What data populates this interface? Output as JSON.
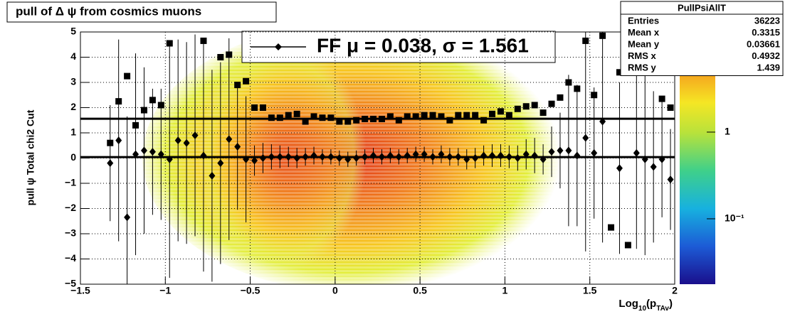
{
  "chart_data": {
    "type": "scatter",
    "title": "pull of Δ ψ from cosmics muons",
    "y_label": "pull ψ   Total chi2 Cut",
    "x_label": [
      "Log",
      "10",
      "(p",
      "TAv",
      ")"
    ],
    "legend_text": "FF μ =  0.038, σ =   1.561",
    "fit_mean": 0.038,
    "fit_sigma": 1.561,
    "xlim": [
      -1.5,
      2
    ],
    "ylim": [
      -5,
      5
    ],
    "xticks": [
      {
        "value": -1.5,
        "label": "−1.5"
      },
      {
        "value": -1,
        "label": "−1"
      },
      {
        "value": -0.5,
        "label": "−0.5"
      },
      0,
      0.5,
      1,
      1.5,
      2
    ],
    "yticks": [
      {
        "value": -5,
        "label": "−5"
      },
      {
        "value": -4,
        "label": "−4"
      },
      {
        "value": -3,
        "label": "−3"
      },
      {
        "value": -2,
        "label": "−2"
      },
      {
        "value": -1,
        "label": "−1"
      },
      0,
      1,
      2,
      3,
      4,
      5
    ],
    "grid": true,
    "zlim": [
      0.0176,
      14.3
    ],
    "zlog": true,
    "zticks": [
      {
        "value": 1,
        "label": "1"
      },
      {
        "value": 0.1,
        "label": "10⁻¹"
      }
    ],
    "x": [
      -1.325,
      -1.275,
      -1.225,
      -1.175,
      -1.125,
      -1.075,
      -1.025,
      -0.975,
      -0.925,
      -0.875,
      -0.825,
      -0.775,
      -0.725,
      -0.675,
      -0.625,
      -0.575,
      -0.525,
      -0.475,
      -0.425,
      -0.375,
      -0.325,
      -0.275,
      -0.225,
      -0.175,
      -0.125,
      -0.075,
      -0.025,
      0.025,
      0.075,
      0.125,
      0.175,
      0.225,
      0.275,
      0.325,
      0.375,
      0.425,
      0.475,
      0.525,
      0.575,
      0.625,
      0.675,
      0.725,
      0.775,
      0.825,
      0.875,
      0.925,
      0.975,
      1.025,
      1.075,
      1.125,
      1.175,
      1.225,
      1.275,
      1.325,
      1.375,
      1.425,
      1.475,
      1.525,
      1.575,
      1.625,
      1.675,
      1.725,
      1.775,
      1.825,
      1.875,
      1.925,
      1.975
    ],
    "series": [
      {
        "marker": "square",
        "color": "#000000",
        "values": [
          0.6,
          2.25,
          3.25,
          1.3,
          1.9,
          2.3,
          2.1,
          4.55,
          null,
          null,
          null,
          4.65,
          null,
          4.0,
          4.1,
          2.9,
          3.05,
          2.0,
          2.0,
          1.6,
          1.6,
          1.7,
          1.75,
          1.45,
          1.65,
          1.6,
          1.6,
          1.45,
          1.45,
          1.5,
          1.55,
          1.55,
          1.55,
          1.65,
          1.5,
          1.65,
          1.65,
          1.7,
          1.7,
          1.65,
          1.5,
          1.7,
          1.7,
          1.7,
          1.5,
          1.75,
          1.85,
          1.7,
          1.95,
          2.05,
          2.1,
          1.8,
          2.15,
          2.4,
          3.0,
          2.75,
          4.65,
          2.5,
          4.85,
          -2.75,
          3.4,
          -3.45,
          3.85,
          null,
          null,
          2.35,
          2.0
        ]
      },
      {
        "marker": "diamond",
        "color": "#000000",
        "values": [
          -0.2,
          0.7,
          -2.35,
          0.15,
          0.3,
          0.25,
          0.15,
          -0.05,
          0.7,
          0.6,
          0.9,
          0.1,
          -0.7,
          -0.2,
          0.75,
          0.45,
          -0.05,
          -0.1,
          0.0,
          0.05,
          0.05,
          0.05,
          0.0,
          0.05,
          0.1,
          0.05,
          0.05,
          0.0,
          -0.05,
          0.0,
          0.05,
          0.1,
          0.05,
          0.1,
          0.05,
          0.1,
          0.15,
          0.15,
          0.05,
          0.15,
          0.05,
          0.05,
          -0.05,
          0.0,
          0.1,
          0.1,
          0.1,
          0.05,
          0.0,
          0.15,
          0.1,
          -0.05,
          0.25,
          0.3,
          0.3,
          0.1,
          0.8,
          0.2,
          1.45,
          null,
          -0.4,
          null,
          0.2,
          -0.05,
          -0.35,
          -0.05,
          -0.85
        ],
        "errors": [
          2.3,
          4,
          4,
          4,
          3.3,
          2.5,
          2.6,
          4.7,
          4,
          4,
          4,
          4.6,
          4.2,
          4,
          4,
          2.5,
          2.5,
          0.6,
          0.6,
          0.5,
          0.45,
          0.4,
          0.4,
          0.35,
          0.35,
          0.3,
          0.3,
          0.3,
          0.3,
          0.3,
          0.3,
          0.3,
          0.3,
          0.3,
          0.3,
          0.3,
          0.3,
          0.3,
          0.3,
          0.35,
          0.35,
          0.35,
          0.4,
          0.4,
          0.4,
          0.45,
          0.45,
          0.45,
          0.5,
          0.6,
          0.7,
          0.6,
          1,
          1.5,
          3,
          2.8,
          4.5,
          2.6,
          4.8,
          null,
          3.4,
          null,
          3.8,
          3.8,
          3,
          2.3,
          2.0
        ]
      }
    ],
    "stats": {
      "title": "PullPsiAllT",
      "rows": [
        [
          "Entries",
          "36223"
        ],
        [
          "Mean x",
          "0.3315"
        ],
        [
          "Mean y",
          "0.03661"
        ],
        [
          "RMS x",
          "0.4932"
        ],
        [
          "RMS y",
          "1.439"
        ]
      ]
    }
  }
}
